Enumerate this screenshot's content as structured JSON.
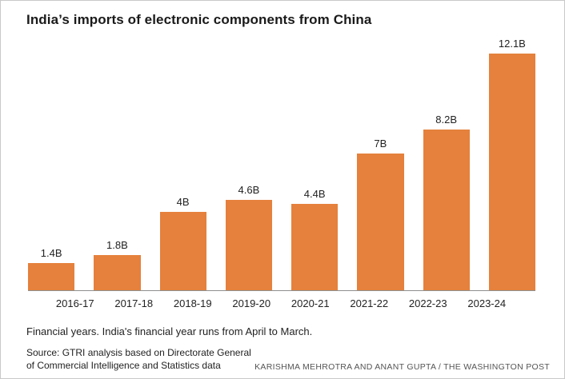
{
  "chart_data": {
    "type": "bar",
    "title": "India’s imports of electronic components from China",
    "categories": [
      "2016-17",
      "2017-18",
      "2018-19",
      "2019-20",
      "2020-21",
      "2021-22",
      "2022-23",
      "2023-24"
    ],
    "values": [
      1.4,
      1.8,
      4,
      4.6,
      4.4,
      7,
      8.2,
      12.1
    ],
    "value_labels": [
      "1.4B",
      "1.8B",
      "4B",
      "4.6B",
      "4.4B",
      "7B",
      "8.2B",
      "12.1B"
    ],
    "unit": "B",
    "xlabel": "Financial years",
    "ylabel": "",
    "ylim": [
      0,
      12.1
    ],
    "grid": false,
    "legend": "none"
  },
  "colors": {
    "bar": "#e5813c",
    "axis": "#8f8f8f",
    "title": "#1a1a1a"
  },
  "notes": {
    "footnote": "Financial years. India's financial year runs from April to March.",
    "source": "Source: GTRI analysis based on Directorate General of Commercial Intelligence and Statistics data",
    "credit": "KARISHMA MEHROTRA AND ANANT GUPTA / THE WASHINGTON POST"
  }
}
